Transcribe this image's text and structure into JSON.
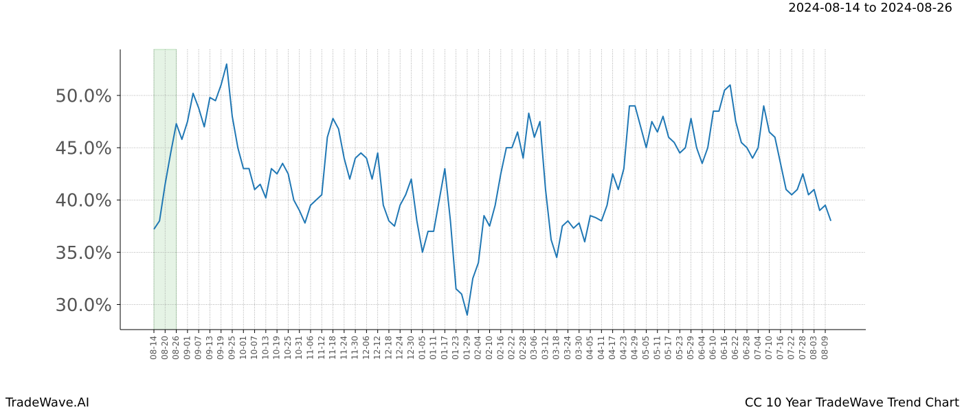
{
  "chart_data": {
    "type": "line",
    "header": "2024-08-14 to 2024-08-26",
    "footer_left": "TradeWave.AI",
    "footer_right": "CC 10 Year TradeWave Trend Chart",
    "highlight": {
      "start": "08-14",
      "end": "08-26"
    },
    "categories": [
      "08-14",
      null,
      "08-20",
      null,
      "08-26",
      null,
      "09-01",
      null,
      "09-07",
      null,
      "09-13",
      null,
      "09-19",
      null,
      "09-25",
      null,
      "10-01",
      null,
      "10-07",
      null,
      "10-13",
      null,
      "10-19",
      null,
      "10-25",
      null,
      "10-31",
      null,
      "11-06",
      null,
      "11-12",
      null,
      "11-18",
      null,
      "11-24",
      null,
      "11-30",
      null,
      "12-06",
      null,
      "12-12",
      null,
      "12-18",
      null,
      "12-24",
      null,
      "12-30",
      null,
      "01-05",
      null,
      "01-11",
      null,
      "01-17",
      null,
      "01-23",
      null,
      "01-29",
      null,
      "02-04",
      null,
      "02-10",
      null,
      "02-16",
      null,
      "02-22",
      null,
      "02-28",
      null,
      "03-06",
      null,
      "03-12",
      null,
      "03-18",
      null,
      "03-24",
      null,
      "03-30",
      null,
      "04-05",
      null,
      "04-11",
      null,
      "04-17",
      null,
      "04-23",
      null,
      "04-29",
      null,
      "05-05",
      null,
      "05-11",
      null,
      "05-17",
      null,
      "05-23",
      null,
      "05-29",
      null,
      "06-04",
      null,
      "06-10",
      null,
      "06-16",
      null,
      "06-22",
      null,
      "06-28",
      null,
      "07-04",
      null,
      "07-10",
      null,
      "07-16",
      null,
      "07-22",
      null,
      "07-28",
      null,
      "08-03",
      null,
      "08-09",
      null
    ],
    "values": [
      37.2,
      38,
      41.5,
      44.5,
      47.3,
      45.8,
      47.5,
      50.2,
      48.8,
      47,
      49.8,
      49.5,
      51,
      53,
      48,
      45,
      43,
      43,
      41,
      41.5,
      40.2,
      43,
      42.5,
      43.5,
      42.5,
      40,
      39,
      37.8,
      39.5,
      40,
      40.5,
      46,
      47.8,
      46.8,
      44,
      42,
      44,
      44.5,
      44,
      42,
      44.5,
      39.5,
      38,
      37.5,
      39.5,
      40.5,
      42,
      38,
      35,
      37,
      37,
      40,
      43,
      38,
      31.5,
      31,
      29,
      32.5,
      34,
      38.5,
      37.5,
      39.5,
      42.5,
      45,
      45,
      46.5,
      44,
      48.3,
      46,
      47.5,
      41,
      36.2,
      34.5,
      37.5,
      38,
      37.3,
      37.8,
      36,
      38.5,
      38.3,
      38,
      39.5,
      42.5,
      41,
      43,
      49,
      49,
      47,
      45,
      47.5,
      46.5,
      48,
      46,
      45.5,
      44.5,
      45,
      47.8,
      45,
      43.5,
      45,
      48.5,
      48.5,
      50.5,
      51,
      47.5,
      45.5,
      45,
      44,
      45,
      49,
      46.5,
      46,
      43.5,
      41,
      40.5,
      41,
      42.5,
      40.5,
      41,
      39,
      39.5,
      38
    ],
    "color": "#1f77b4",
    "ylim": [
      27.6,
      54.4
    ],
    "yticks": [
      {
        "value": 30,
        "label": "30.0%"
      },
      {
        "value": 35,
        "label": "35.0%"
      },
      {
        "value": 40,
        "label": "40.0%"
      },
      {
        "value": 45,
        "label": "45.0%"
      },
      {
        "value": 50,
        "label": "50.0%"
      }
    ],
    "grid": true
  }
}
